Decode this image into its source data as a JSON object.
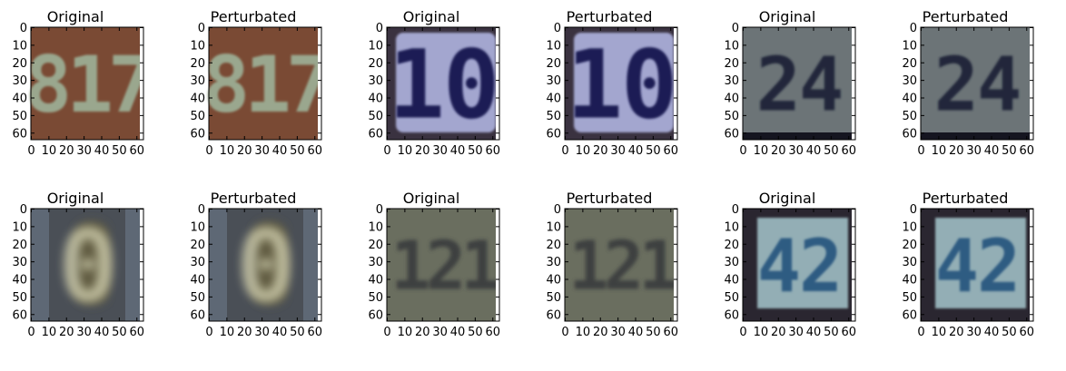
{
  "figure": {
    "panels": [
      {
        "title": "Original",
        "digits": "817",
        "style": "brown"
      },
      {
        "title": "Perturbated",
        "digits": "817",
        "style": "brown"
      },
      {
        "title": "Original",
        "digits": "10",
        "style": "bluesign"
      },
      {
        "title": "Perturbated",
        "digits": "10",
        "style": "bluesign"
      },
      {
        "title": "Original",
        "digits": "24",
        "style": "graysign"
      },
      {
        "title": "Perturbated",
        "digits": "24",
        "style": "graysign"
      },
      {
        "title": "Original",
        "digits": "0",
        "style": "blurry"
      },
      {
        "title": "Perturbated",
        "digits": "0",
        "style": "blurry"
      },
      {
        "title": "Original",
        "digits": "121",
        "style": "olive"
      },
      {
        "title": "Perturbated",
        "digits": "121",
        "style": "olive"
      },
      {
        "title": "Original",
        "digits": "42",
        "style": "teal"
      },
      {
        "title": "Perturbated",
        "digits": "42",
        "style": "teal"
      }
    ],
    "x_ticks": [
      "0",
      "10",
      "20",
      "30",
      "40",
      "50",
      "60"
    ],
    "y_ticks": [
      "0",
      "10",
      "20",
      "30",
      "40",
      "50",
      "60"
    ],
    "colors": {
      "brown_bg": "#7a4a34",
      "brown_fg": "#9aa78e",
      "bluesign_bg": "#8d8fb5",
      "bluesign_fg": "#1c1f55",
      "graysign_bg": "#6c7477",
      "graysign_fg": "#20283a",
      "blurry_bg": "#4a4f56",
      "blurry_fg": "#c9c7a7",
      "olive_bg": "#6a6e5f",
      "olive_fg": "#3d4140",
      "teal_bg": "#8fa6ad",
      "teal_fg": "#2f5c82"
    }
  }
}
